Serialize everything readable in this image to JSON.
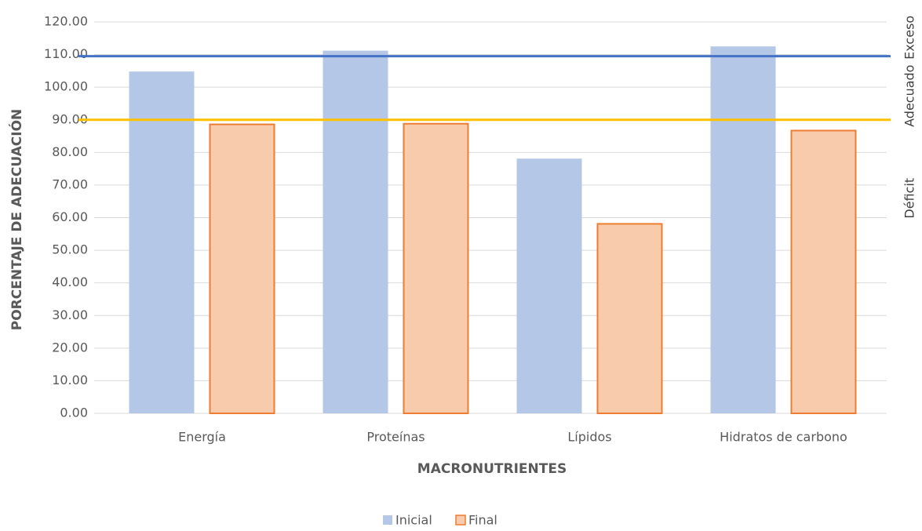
{
  "chart_data": {
    "type": "bar",
    "xlabel": "MACRONUTRIENTES",
    "ylabel": "PORCENTAJE DE ADECUACIÓN",
    "categories": [
      "Energía",
      "Proteínas",
      "Lípidos",
      "Hidratos de carbono"
    ],
    "series": [
      {
        "name": "Inicial",
        "color": "#b4c7e7",
        "values": [
          104.8,
          111.2,
          78.1,
          112.5
        ]
      },
      {
        "name": "Final",
        "color": "#f8cbad",
        "edge_color": "#ed7d31",
        "values": [
          88.6,
          88.8,
          58.1,
          86.7
        ]
      }
    ],
    "reference_lines": [
      {
        "value": 109.5,
        "color": "#4472c4"
      },
      {
        "value": 90,
        "color": "#ffc000"
      }
    ],
    "zone_labels": [
      "Exceso",
      "Adecuado",
      "Déficit"
    ],
    "ylim": [
      0,
      120
    ],
    "yticks": [
      {
        "value": 0,
        "label": "0.00"
      },
      {
        "value": 10,
        "label": "10.00"
      },
      {
        "value": 20,
        "label": "20.00"
      },
      {
        "value": 30,
        "label": "30.00"
      },
      {
        "value": 40,
        "label": "40.00"
      },
      {
        "value": 50,
        "label": "50.00"
      },
      {
        "value": 60,
        "label": "60.00"
      },
      {
        "value": 70,
        "label": "70.00"
      },
      {
        "value": 80,
        "label": "80.00"
      },
      {
        "value": 90,
        "label": "90.00"
      },
      {
        "value": 100,
        "label": "100.00"
      },
      {
        "value": 110,
        "label": "110.00"
      },
      {
        "value": 120,
        "label": "120.00"
      }
    ],
    "grid": true,
    "legend": "bottom"
  }
}
